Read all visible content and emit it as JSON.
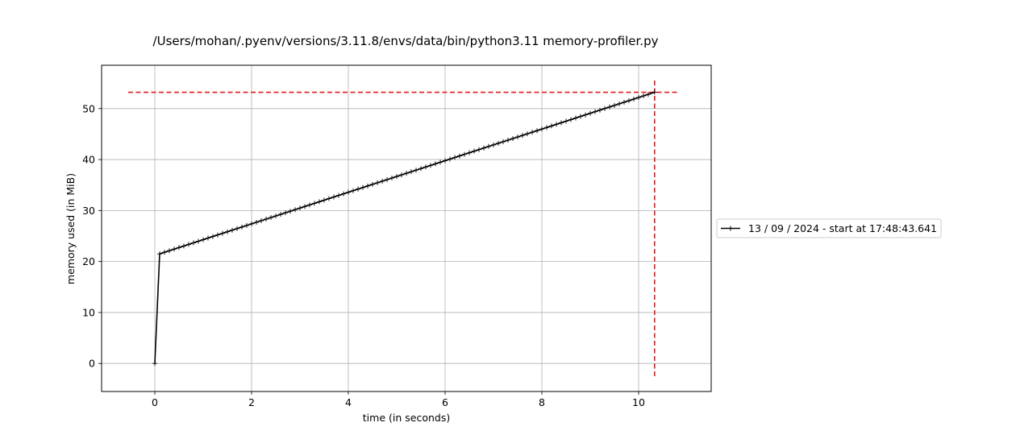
{
  "chart_data": {
    "type": "line",
    "title": "/Users/mohan/.pyenv/versions/3.11.8/envs/data/bin/python3.11 memory-profiler.py",
    "xlabel": "time (in seconds)",
    "ylabel": "memory used (in MiB)",
    "xlim": [
      -1.1,
      11.5
    ],
    "ylim": [
      -5.5,
      58.5
    ],
    "xticks": [
      0,
      2,
      4,
      6,
      8,
      10
    ],
    "yticks": [
      0,
      10,
      20,
      30,
      40,
      50
    ],
    "grid": true,
    "legend_position": "outside-right",
    "series": [
      {
        "name": "13 / 09 / 2024 - start at 17:48:43.641",
        "color": "#000000",
        "marker": "+",
        "x_start": 0.1,
        "x_end": 10.33,
        "x_step": 0.1,
        "y_start": 21.5,
        "y_end": 53.2,
        "initial_point": [
          0,
          0
        ]
      }
    ],
    "max_markers": {
      "color": "#e31a1c",
      "x": 10.33,
      "y": 53.2,
      "hline_xrange": [
        -0.55,
        10.85
      ],
      "vline_yrange": [
        -2.5,
        55.8
      ]
    }
  }
}
